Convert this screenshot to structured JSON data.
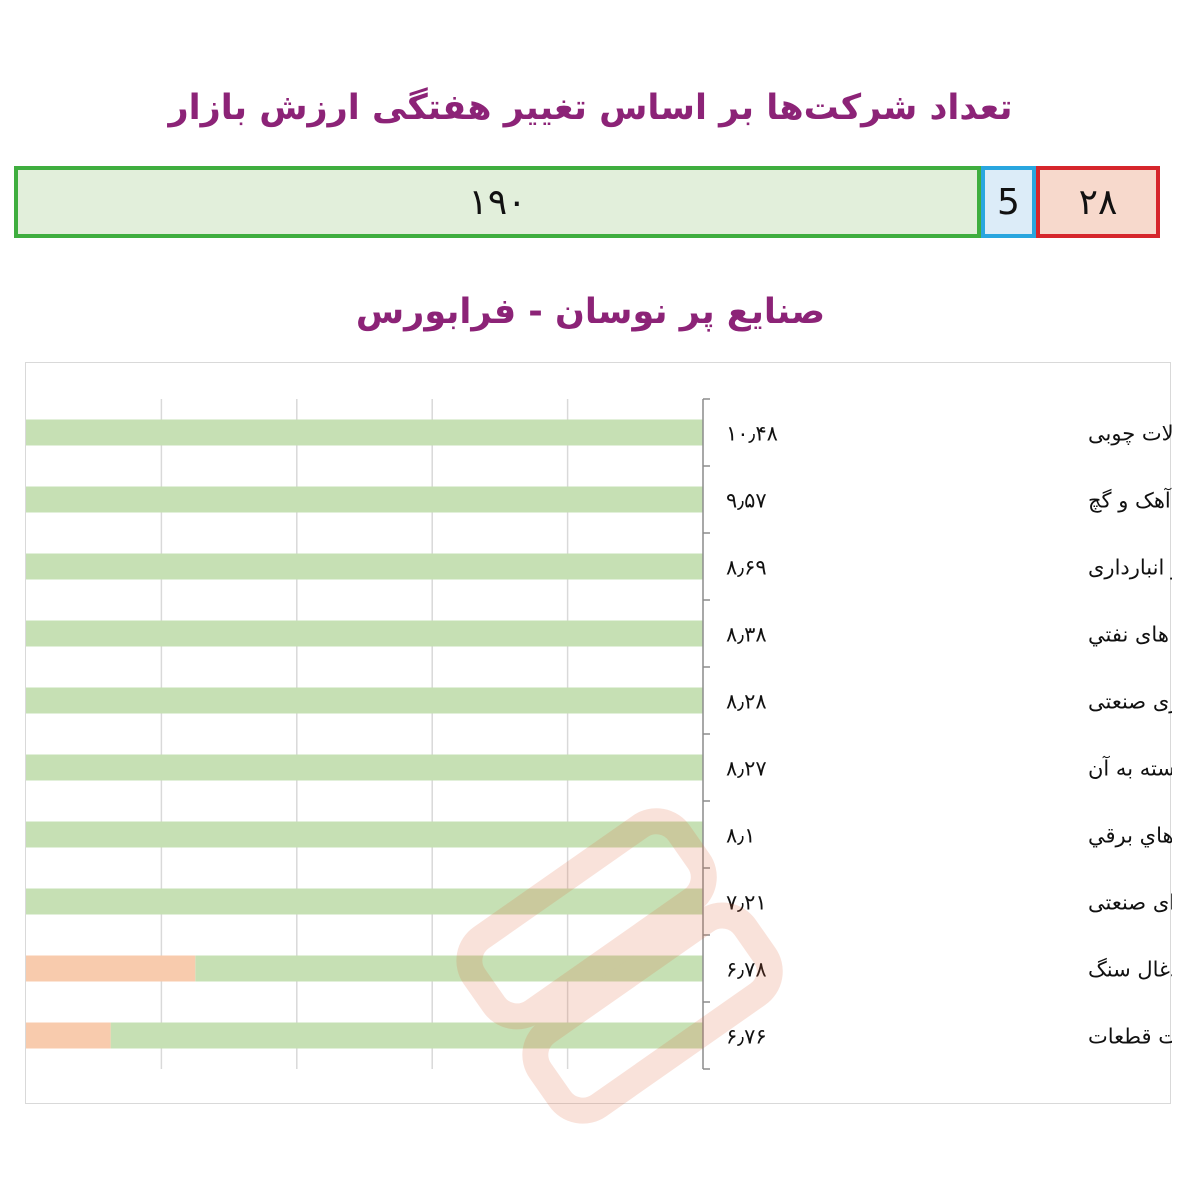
{
  "summary": {
    "title": "تعداد شرکت‌ها بر اساس تغییر هفتگی ارزش بازار",
    "up_count": "۱۹۰",
    "flat_count": "5",
    "down_count": "۲۸",
    "colors": {
      "up": "#3fae3f",
      "flat": "#29a6df",
      "down": "#d6262c"
    }
  },
  "chart_data": {
    "type": "bar",
    "orientation": "horizontal",
    "title": "صنایع پر نوسان - فرابورس",
    "categories": [
      "محصولات چوبی",
      "سیمان، آهک و گچ",
      "حمل و نقل و انبارداری",
      "فرآورده های نفتي",
      "پیمانکاری صنعتی",
      "رايانه و فعاليتهاي وابسته به آن",
      "ماشين آلات و دستگاه هاي برقي",
      "شرکتهای چند رشته ای صنعتی",
      "استخراج ذغال سنگ",
      "خودرو و ساخت قطعات"
    ],
    "value_labels": [
      "۱۰٫۴۸",
      "۹٫۵۷",
      "۸٫۶۹",
      "۸٫۳۸",
      "۸٫۲۸",
      "۸٫۲۷",
      "۸٫۱",
      "۷٫۲۱",
      "۶٫۷۸",
      "۶٫۷۶"
    ],
    "values": [
      10.48,
      9.57,
      8.69,
      8.38,
      8.28,
      8.27,
      8.1,
      7.21,
      6.78,
      6.76
    ],
    "series": [
      {
        "name": "",
        "color": "#c6e0b4",
        "values": [
          1,
          1,
          1,
          1,
          1,
          1,
          1,
          1,
          0.75,
          0.875
        ]
      },
      {
        "name": "",
        "color": "#f8cbad",
        "values": [
          0,
          0,
          0,
          0,
          0,
          0,
          0,
          0,
          0.25,
          0.125
        ]
      }
    ],
    "xlim": [
      0,
      1
    ],
    "grid": true,
    "colors": {
      "gridline": "#d9d9d9",
      "axis": "#8c8c8c"
    }
  }
}
